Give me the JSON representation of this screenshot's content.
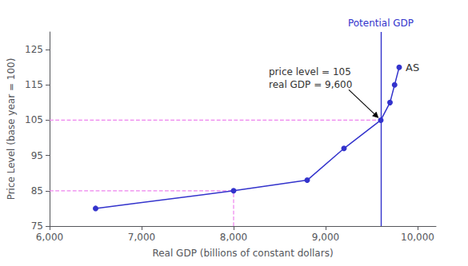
{
  "chart_data": {
    "type": "line",
    "xlabel": "Real GDP (billions of constant dollars)",
    "ylabel": "Price Level (base year = 100)",
    "x": [
      6500,
      8000,
      8800,
      9200,
      9600,
      9700,
      9750,
      9800
    ],
    "values": [
      80,
      85,
      88,
      97,
      105,
      110,
      115,
      120
    ],
    "color": "#3333cc",
    "marker": "circle",
    "xlim": [
      6000,
      10200
    ],
    "xticks": [
      {
        "value": 6000,
        "label": "6,000"
      },
      {
        "value": 7000,
        "label": "7,000"
      },
      {
        "value": 8000,
        "label": "8,000"
      },
      {
        "value": 9000,
        "label": "9,000"
      },
      {
        "value": 10000,
        "label": "10,000"
      }
    ],
    "ylim": [
      75,
      130
    ],
    "yticks": [
      75,
      85,
      95,
      105,
      115,
      125
    ],
    "grid": false,
    "reference_lines": [
      {
        "x": 9600,
        "label": "Potential GDP",
        "color": "#3333cc",
        "line_style": "solid"
      }
    ],
    "segments": [
      {
        "x": [
          6000,
          9600
        ],
        "y": [
          105,
          105
        ],
        "color": "#ee82ee",
        "line_style": "dashed"
      },
      {
        "x": [
          6000,
          8000
        ],
        "y": [
          85,
          85
        ],
        "color": "#ee82ee",
        "line_style": "dashed"
      },
      {
        "x": [
          8000,
          8000
        ],
        "y": [
          75,
          85
        ],
        "color": "#ee82ee",
        "line_style": "dashed"
      }
    ],
    "annotations": [
      {
        "text": "AS",
        "x": 9800,
        "y": 120
      },
      {
        "text": "price level = 105\nreal GDP = 9,600",
        "xy": [
          9600,
          105
        ]
      }
    ]
  }
}
